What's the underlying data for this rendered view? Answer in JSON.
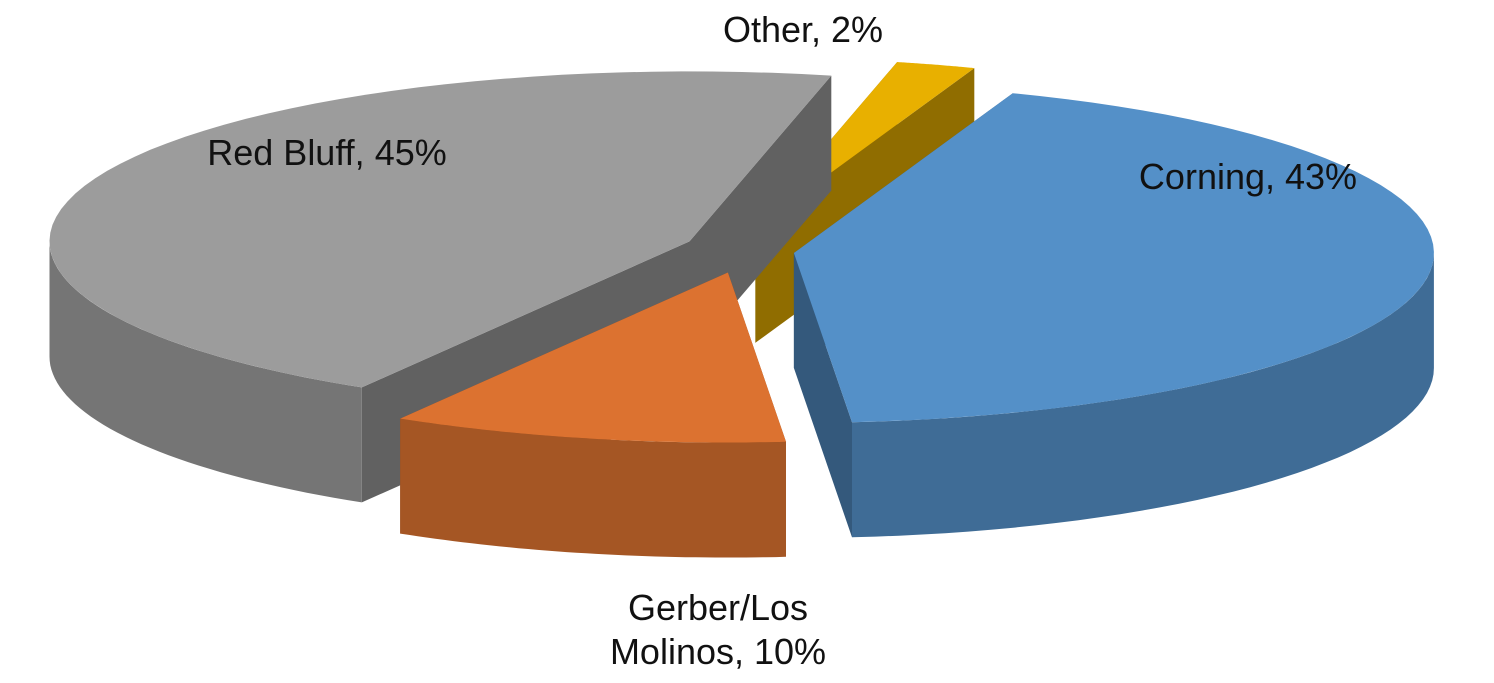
{
  "chart_data": {
    "type": "pie3d",
    "values": [
      43,
      10,
      45,
      2
    ],
    "value_labels": [
      "Corning, 43%",
      "Gerber/Los Molinos, 10%",
      "Red Bluff, 45%",
      "Other, 2%"
    ],
    "colors": [
      "#5490c8",
      "#dc7230",
      "#9c9c9c",
      "#e8b000"
    ],
    "exploded": true
  }
}
